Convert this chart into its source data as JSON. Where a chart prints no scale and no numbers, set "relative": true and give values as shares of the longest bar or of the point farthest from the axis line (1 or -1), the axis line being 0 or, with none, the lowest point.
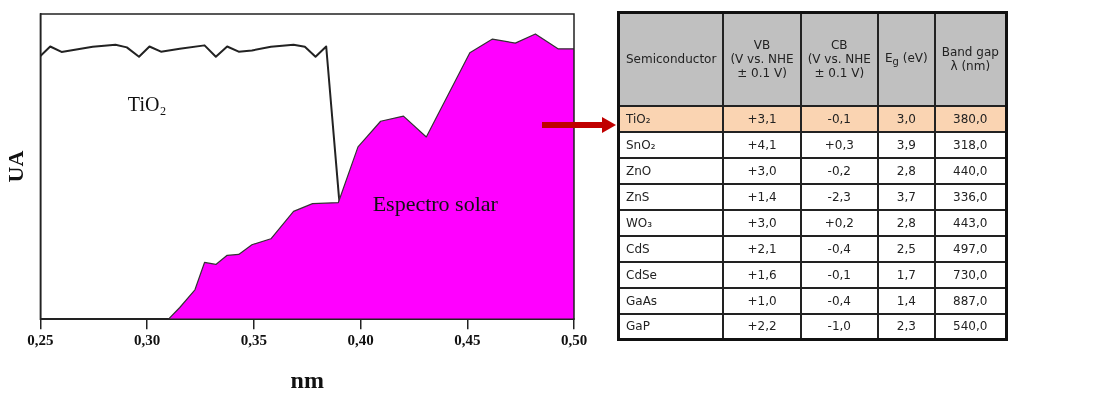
{
  "chart_data": [
    {
      "type": "area",
      "xlabel": "nm",
      "ylabel": "UA",
      "relative": true,
      "xlim": [
        0.25,
        0.5
      ],
      "xticks": [
        {
          "value": 0.25,
          "label": "0,25"
        },
        {
          "value": 0.3,
          "label": "0,30"
        },
        {
          "value": 0.35,
          "label": "0,35"
        },
        {
          "value": 0.4,
          "label": "0,40"
        },
        {
          "value": 0.45,
          "label": "0,45"
        },
        {
          "value": 0.5,
          "label": "0,50"
        }
      ],
      "series": [
        {
          "name": "Espectro solar",
          "type": "area",
          "color": "#ff00ff",
          "x": [
            0.31,
            0.3153,
            0.3224,
            0.3269,
            0.3322,
            0.3375,
            0.3429,
            0.3491,
            0.358,
            0.3686,
            0.3775,
            0.3896,
            0.3988,
            0.4094,
            0.4201,
            0.4308,
            0.4512,
            0.4618,
            0.4725,
            0.4819,
            0.4925,
            0.5
          ],
          "values": [
            0,
            0.041,
            0.103,
            0.199,
            0.192,
            0.224,
            0.227,
            0.261,
            0.282,
            0.378,
            0.405,
            0.409,
            0.604,
            0.694,
            0.712,
            0.639,
            0.934,
            0.982,
            0.968,
            1,
            0.948,
            0.948
          ]
        },
        {
          "name": "TiO₂",
          "type": "line",
          "color": "#222222",
          "x": [
            0.25,
            0.2546,
            0.2599,
            0.2745,
            0.2852,
            0.2905,
            0.2962,
            0.3011,
            0.3065,
            0.3153,
            0.3269,
            0.3322,
            0.3375,
            0.3429,
            0.3491,
            0.358,
            0.3686,
            0.3739,
            0.3789,
            0.3839,
            0.3899,
            0.3979
          ],
          "values": [
            0.923,
            0.956,
            0.937,
            0.955,
            0.962,
            0.953,
            0.92,
            0.956,
            0.938,
            0.948,
            0.96,
            0.92,
            0.956,
            0.938,
            0.942,
            0.955,
            0.962,
            0.955,
            0.92,
            0.956,
            0.426,
            0
          ]
        }
      ]
    },
    {
      "type": "other",
      "categories": [
        "Semiconductor",
        "VB\n(V vs. NHE\n± 0.1 V)",
        "CB\n(V vs. NHE\n± 0.1 V)",
        "E$_{g}$ (eV)",
        "Band gap\nλ (nm)"
      ],
      "y_categories": [
        "TiO₂",
        "SnO₂",
        "ZnO",
        "ZnS",
        "WO₃",
        "CdS",
        "CdSe",
        "GaAs",
        "GaP"
      ],
      "cell_labels": [
        [
          "+3,1",
          "-0,1",
          "3,0",
          "380,0"
        ],
        [
          "+4,1",
          "+0,3",
          "3,9",
          "318,0"
        ],
        [
          "+3,0",
          "-0,2",
          "2,8",
          "440,0"
        ],
        [
          "+1,4",
          "-2,3",
          "3,7",
          "336,0"
        ],
        [
          "+3,0",
          "+0,2",
          "2,8",
          "443,0"
        ],
        [
          "+2,1",
          "-0,4",
          "2,5",
          "497,0"
        ],
        [
          "+1,6",
          "-0,1",
          "1,7",
          "730,0"
        ],
        [
          "+1,0",
          "-0,4",
          "1,4",
          "887,0"
        ],
        [
          "+2,2",
          "-1,0",
          "2,3",
          "540,0"
        ]
      ]
    }
  ]
}
